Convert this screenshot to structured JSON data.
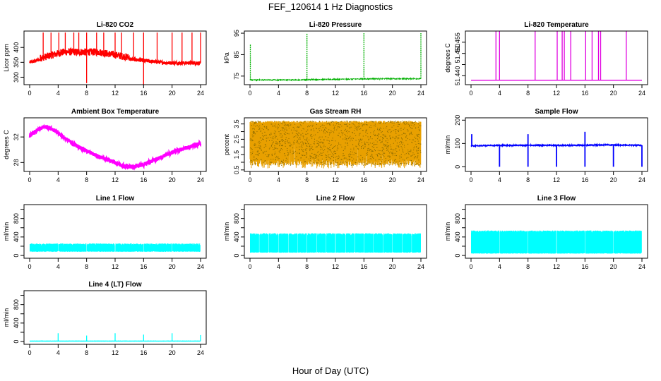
{
  "title": "FEF_120614  1 Hz Diagnostics",
  "xlabel": "Hour of Day (UTC)",
  "colors": {
    "co2": "#ff0000",
    "pressure": "#00b000",
    "temperature": "#e000e0",
    "ambient": "#ff00ff",
    "rh": "#e8a000",
    "sample_flow": "#0000ff",
    "line_flow": "#00ffff"
  },
  "chart_data": [
    {
      "type": "line",
      "title": "Li-820 CO2",
      "ylabel": "Licor ppm",
      "xlim": [
        0,
        24
      ],
      "ylim": [
        275,
        455
      ],
      "xticks": [
        0,
        4,
        8,
        12,
        16,
        20,
        24
      ],
      "yticks": [
        300,
        350,
        400
      ],
      "color_key": "co2",
      "pattern": "co2",
      "base": [
        350,
        380,
        380,
        360,
        348,
        348
      ],
      "noise": 12,
      "spikes": [
        [
          1.9,
          450
        ],
        [
          3.0,
          450
        ],
        [
          4.1,
          450
        ],
        [
          5.0,
          450
        ],
        [
          6.2,
          450
        ],
        [
          6.9,
          450
        ],
        [
          8.0,
          450
        ],
        [
          8.0,
          280
        ],
        [
          9.4,
          450
        ],
        [
          10.4,
          450
        ],
        [
          12.0,
          450
        ],
        [
          12.9,
          450
        ],
        [
          14.6,
          450
        ],
        [
          16.0,
          450
        ],
        [
          16.0,
          275
        ],
        [
          17.9,
          450
        ],
        [
          20.0,
          450
        ],
        [
          21.4,
          450
        ],
        [
          22.8,
          450
        ],
        [
          24.0,
          450
        ]
      ]
    },
    {
      "type": "line",
      "title": "Li-820 Pressure",
      "ylabel": "kPa",
      "xlim": [
        0,
        24
      ],
      "ylim": [
        71,
        96
      ],
      "xticks": [
        0,
        4,
        8,
        12,
        16,
        20,
        24
      ],
      "yticks": [
        75,
        85,
        95
      ],
      "color_key": "pressure",
      "pattern": "pressure",
      "base": [
        73.2,
        73.2,
        73.4,
        73.6,
        73.8,
        73.8
      ],
      "noise": 0.3,
      "spikes": [
        [
          0.05,
          90
        ],
        [
          8.0,
          95
        ],
        [
          16.0,
          95
        ],
        [
          24.0,
          95
        ]
      ]
    },
    {
      "type": "line",
      "title": "Li-820 Temperature",
      "ylabel": "degrees C",
      "xlim": [
        0,
        24
      ],
      "ylim": [
        51.436,
        51.46
      ],
      "xticks": [
        0,
        4,
        8,
        12,
        16,
        20,
        24
      ],
      "yticks": [
        51.44,
        51.445,
        51.45,
        51.455
      ],
      "ytick_labels": [
        "51.440",
        "",
        "51.450",
        "51.455"
      ],
      "color_key": "temperature",
      "pattern": "temperature",
      "base": [
        51.438,
        51.438
      ],
      "noise": 0,
      "spikes": [
        [
          3.5,
          51.46
        ],
        [
          4.0,
          51.46
        ],
        [
          9.0,
          51.46
        ],
        [
          12.1,
          51.46
        ],
        [
          12.8,
          51.46
        ],
        [
          13.1,
          51.46
        ],
        [
          14.0,
          51.46
        ],
        [
          16.1,
          51.46
        ],
        [
          17.0,
          51.46
        ],
        [
          17.9,
          51.46
        ],
        [
          18.2,
          51.46
        ],
        [
          21.8,
          51.46
        ]
      ]
    },
    {
      "type": "line",
      "title": "Ambient Box Temperature",
      "ylabel": "degrees C",
      "xlim": [
        0,
        24
      ],
      "ylim": [
        26.6,
        35.0
      ],
      "xticks": [
        0,
        4,
        8,
        12,
        16,
        20,
        24
      ],
      "yticks": [
        28,
        32
      ],
      "ytick_labels": [
        "28",
        "32"
      ],
      "color_key": "ambient",
      "pattern": "ambient",
      "curve": [
        [
          0,
          32.2
        ],
        [
          1,
          33.0
        ],
        [
          2,
          33.6
        ],
        [
          3,
          33.4
        ],
        [
          4,
          32.6
        ],
        [
          6,
          31.0
        ],
        [
          8,
          29.8
        ],
        [
          10,
          28.8
        ],
        [
          12,
          28.0
        ],
        [
          13,
          27.5
        ],
        [
          14,
          27.3
        ],
        [
          15,
          27.4
        ],
        [
          16,
          27.7
        ],
        [
          18,
          28.6
        ],
        [
          20,
          29.6
        ],
        [
          22,
          30.3
        ],
        [
          24,
          31.0
        ]
      ],
      "noise": 0.3
    },
    {
      "type": "line",
      "title": "Gas Stream RH",
      "ylabel": "percent",
      "xlim": [
        0,
        24
      ],
      "ylim": [
        0.4,
        3.9
      ],
      "xticks": [
        0,
        4,
        8,
        12,
        16,
        20,
        24
      ],
      "yticks": [
        0.5,
        1.5,
        2.5,
        3.5
      ],
      "yminor": [
        1.0,
        2.0,
        3.0
      ],
      "color_key": "rh",
      "pattern": "rh",
      "base": [
        3.5,
        3.6
      ],
      "noise": 0.2
    },
    {
      "type": "line",
      "title": "Sample Flow",
      "ylabel": "ml/min",
      "xlim": [
        0,
        24
      ],
      "ylim": [
        -20,
        210
      ],
      "xticks": [
        0,
        4,
        8,
        12,
        16,
        20,
        24
      ],
      "yticks": [
        0,
        100,
        200
      ],
      "color_key": "sample_flow",
      "pattern": "sample",
      "base": [
        90,
        92,
        92,
        92,
        94,
        92
      ],
      "noise": 4,
      "spikes": [
        [
          0.1,
          140
        ],
        [
          4.0,
          0
        ],
        [
          8.0,
          0
        ],
        [
          8.0,
          140
        ],
        [
          12.0,
          0
        ],
        [
          16.0,
          0
        ],
        [
          16.0,
          150
        ],
        [
          20.0,
          0
        ],
        [
          24.0,
          0
        ]
      ]
    },
    {
      "type": "line",
      "title": "Line 1 Flow",
      "ylabel": "ml/min",
      "xlim": [
        0,
        24
      ],
      "ylim": [
        -60,
        1100
      ],
      "xticks": [
        0,
        4,
        8,
        12,
        16,
        20,
        24
      ],
      "yticks": [
        0,
        400,
        800
      ],
      "yminor": [
        200,
        600,
        1000
      ],
      "color_key": "line_flow",
      "pattern": "band",
      "band": [
        80,
        260
      ],
      "gaps": [
        4.0,
        8.0,
        12.0,
        16.0,
        20.0,
        24.0
      ]
    },
    {
      "type": "line",
      "title": "Line 2 Flow",
      "ylabel": "ml/min",
      "xlim": [
        0,
        24
      ],
      "ylim": [
        -60,
        1100
      ],
      "xticks": [
        0,
        4,
        8,
        12,
        16,
        20,
        24
      ],
      "yticks": [
        0,
        400,
        800
      ],
      "yminor": [
        200,
        600,
        1000
      ],
      "color_key": "line_flow",
      "pattern": "band",
      "band": [
        60,
        480
      ],
      "gaps": [
        1.3,
        2.6,
        4.0,
        5.4,
        6.7,
        8.0,
        9.4,
        10.7,
        12.0,
        13.4,
        14.7,
        16.0,
        17.3,
        18.7,
        20.0,
        21.4,
        22.7
      ]
    },
    {
      "type": "line",
      "title": "Line 3 Flow",
      "ylabel": "ml/min",
      "xlim": [
        0,
        24
      ],
      "ylim": [
        -60,
        1100
      ],
      "xticks": [
        0,
        4,
        8,
        12,
        16,
        20,
        24
      ],
      "yticks": [
        0,
        400,
        800
      ],
      "yminor": [
        200,
        600,
        1000
      ],
      "color_key": "line_flow",
      "pattern": "band",
      "band": [
        40,
        540
      ],
      "gaps": [
        4.0,
        8.0,
        12.0,
        16.0,
        20.0,
        24.0
      ]
    },
    {
      "type": "line",
      "title": "Line 4 (LT) Flow",
      "ylabel": "ml/min",
      "xlim": [
        0,
        24
      ],
      "ylim": [
        -60,
        1100
      ],
      "xticks": [
        0,
        4,
        8,
        12,
        16,
        20,
        24
      ],
      "yticks": [
        0,
        400,
        800
      ],
      "yminor": [
        200,
        600,
        1000
      ],
      "color_key": "line_flow",
      "pattern": "flat",
      "base": [
        10,
        10
      ],
      "noise": 3,
      "spikes": [
        [
          4.0,
          180
        ],
        [
          8.0,
          130
        ],
        [
          12.0,
          180
        ],
        [
          16.0,
          150
        ],
        [
          20.0,
          180
        ],
        [
          24.0,
          140
        ]
      ]
    }
  ]
}
